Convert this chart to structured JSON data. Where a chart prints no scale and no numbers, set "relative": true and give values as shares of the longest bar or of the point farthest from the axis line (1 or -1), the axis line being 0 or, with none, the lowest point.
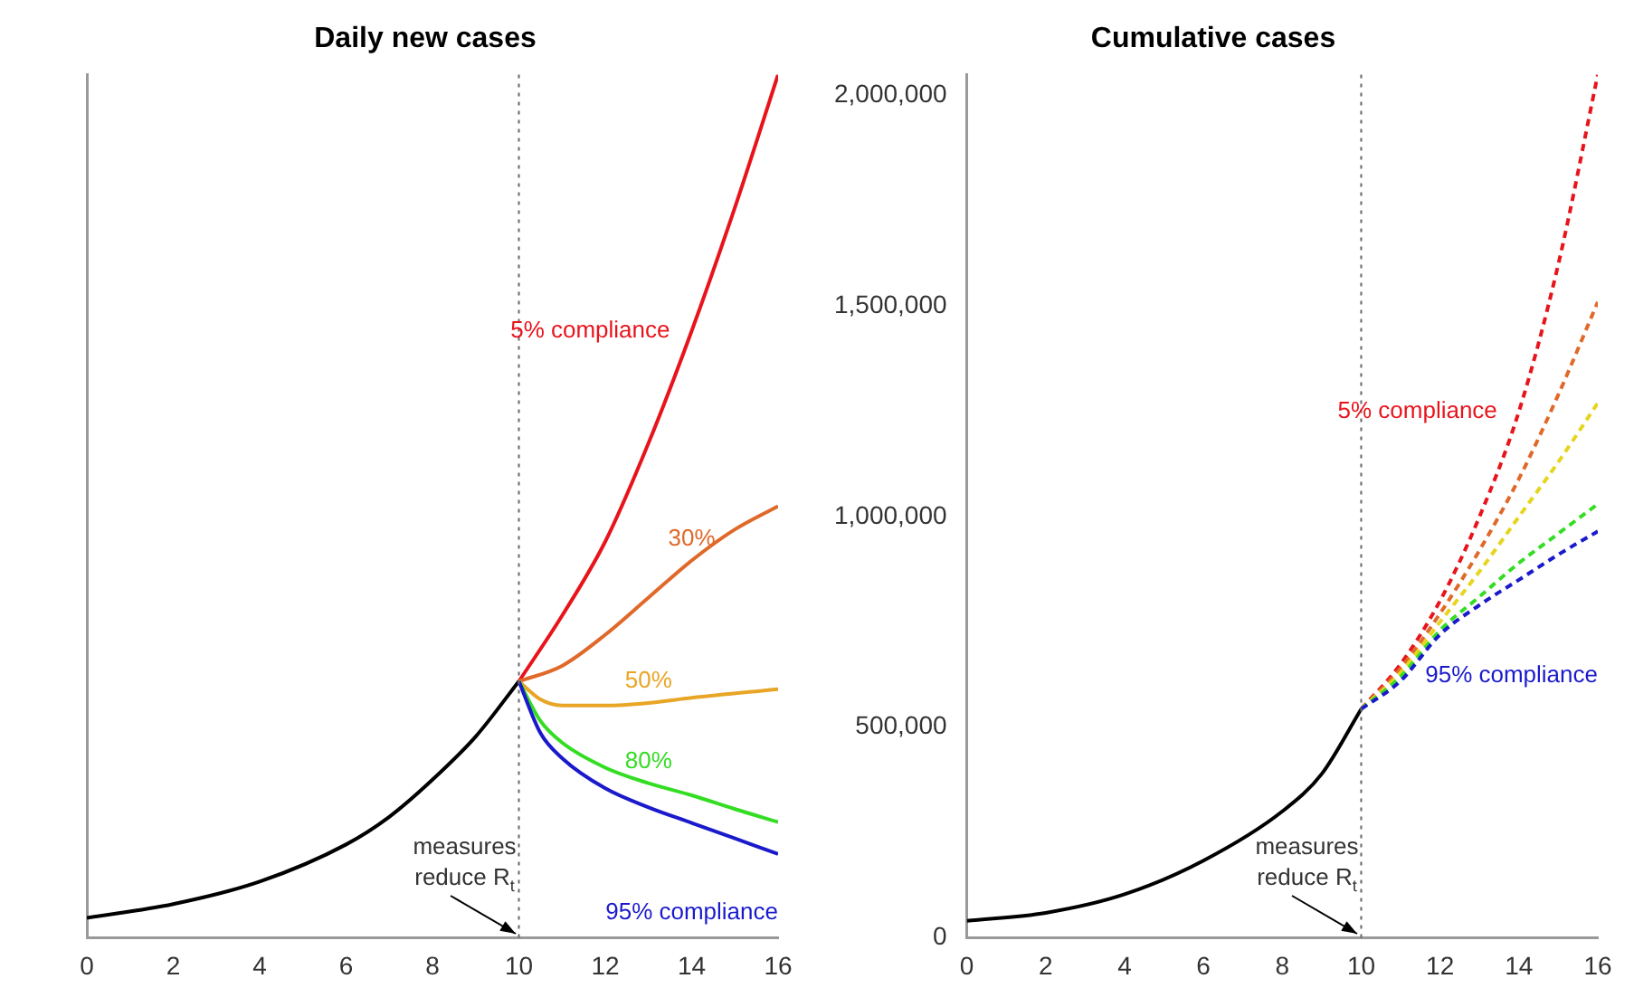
{
  "chart_data": [
    {
      "type": "line",
      "title": "Daily new cases",
      "relative": true,
      "xlim": [
        0,
        16
      ],
      "xticks": [
        0,
        2,
        4,
        6,
        8,
        10,
        12,
        14,
        16
      ],
      "grid": false,
      "legend": false,
      "marker": "none",
      "line_style": "solid",
      "series": [
        {
          "color": "#000000",
          "x": [
            0,
            2,
            4,
            6,
            7,
            8,
            9,
            10
          ],
          "values": [
            0.023,
            0.039,
            0.065,
            0.108,
            0.14,
            0.183,
            0.233,
            0.297
          ]
        },
        {
          "name": "5% compliance",
          "color": "#e8141c",
          "x": [
            10,
            11,
            12,
            13,
            14,
            15,
            16
          ],
          "values": [
            0.297,
            0.373,
            0.459,
            0.573,
            0.703,
            0.846,
            1
          ]
        },
        {
          "name": "30%",
          "color": "#e0692a",
          "x": [
            10,
            11,
            12,
            13,
            14,
            15,
            16
          ],
          "values": [
            0.297,
            0.315,
            0.351,
            0.394,
            0.437,
            0.473,
            0.5
          ]
        },
        {
          "name": "50%",
          "color": "#e8a526",
          "x": [
            10,
            10.5,
            11,
            12,
            13,
            14,
            16
          ],
          "values": [
            0.297,
            0.276,
            0.269,
            0.269,
            0.272,
            0.278,
            0.288
          ]
        },
        {
          "name": "80%",
          "color": "#33dd22",
          "x": [
            10,
            10.5,
            11,
            12,
            13,
            14,
            15,
            16
          ],
          "values": [
            0.297,
            0.251,
            0.226,
            0.197,
            0.179,
            0.165,
            0.149,
            0.134
          ]
        },
        {
          "name": "95% compliance",
          "color": "#1a1acc",
          "x": [
            10,
            10.5,
            11,
            12,
            13,
            14,
            15,
            16
          ],
          "values": [
            0.297,
            0.237,
            0.208,
            0.173,
            0.151,
            0.133,
            0.115,
            0.097
          ]
        }
      ],
      "ref_lines": [
        {
          "axis": "x",
          "value": 10,
          "color": "#666666",
          "line_style": "dotted"
        }
      ],
      "annotations": [
        {
          "text": "measures reduce R$_{t}$",
          "x": 10,
          "y": 0
        }
      ]
    },
    {
      "type": "line",
      "title": "Cumulative cases",
      "xlim": [
        0,
        16
      ],
      "xticks": [
        0,
        2,
        4,
        6,
        8,
        10,
        12,
        14,
        16
      ],
      "ylim": [
        0,
        2050000
      ],
      "yticks": [
        0,
        {
          "value": 500000,
          "label": "500,000"
        },
        {
          "value": 1000000,
          "label": "1,000,000"
        },
        {
          "value": 1500000,
          "label": "1,500,000"
        },
        {
          "value": 2000000,
          "label": "2,000,000"
        }
      ],
      "grid": false,
      "legend": false,
      "marker": "none",
      "series": [
        {
          "color": "#000000",
          "line_style": "solid",
          "x": [
            0,
            2,
            4,
            6,
            8,
            9,
            10
          ],
          "values": [
            40000,
            59000,
            103000,
            183000,
            300000,
            389000,
            543000
          ]
        },
        {
          "name": "5% compliance",
          "color": "#e8141c",
          "line_style": "dashed",
          "x": [
            10,
            11,
            12,
            13,
            14,
            15,
            16
          ],
          "values": [
            543000,
            650000,
            800000,
            1000000,
            1250000,
            1600000,
            2050000
          ]
        },
        {
          "color": "#e0692a",
          "line_style": "dashed",
          "x": [
            10,
            11,
            12,
            13,
            14,
            15,
            16
          ],
          "values": [
            543000,
            640000,
            770000,
            920000,
            1090000,
            1290000,
            1510000
          ]
        },
        {
          "color": "#e6d51e",
          "line_style": "dashed",
          "x": [
            10,
            11,
            12,
            13,
            14,
            15,
            16
          ],
          "values": [
            543000,
            630000,
            750000,
            870000,
            1000000,
            1130000,
            1270000
          ]
        },
        {
          "color": "#33dd22",
          "line_style": "dashed",
          "x": [
            10,
            11,
            12,
            13,
            14,
            15,
            16
          ],
          "values": [
            543000,
            620000,
            730000,
            810000,
            890000,
            960000,
            1030000
          ]
        },
        {
          "name": "95% compliance",
          "color": "#1a1acc",
          "line_style": "dashed",
          "x": [
            10,
            11,
            12,
            13,
            14,
            15,
            16
          ],
          "values": [
            543000,
            610000,
            720000,
            790000,
            850000,
            910000,
            965000
          ]
        }
      ],
      "ref_lines": [
        {
          "axis": "x",
          "value": 10,
          "color": "#666666",
          "line_style": "dotted"
        }
      ],
      "annotations": [
        {
          "text": "measures reduce R$_{t}$",
          "x": 10,
          "y": 0
        }
      ]
    }
  ]
}
